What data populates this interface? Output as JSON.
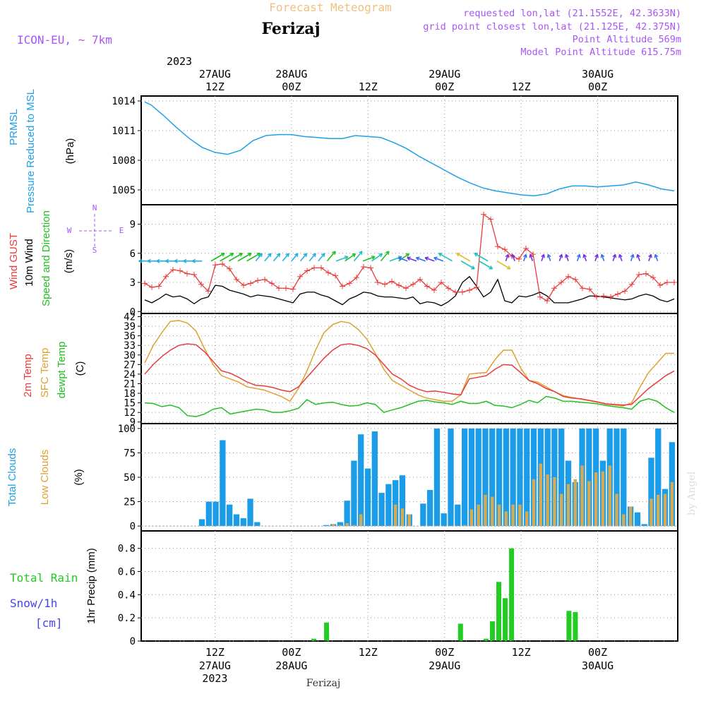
{
  "header": {
    "title_top": "Forecast Meteogram",
    "location": "Ferizaj",
    "model": "ICON-EU, ~ 7km",
    "requested": "requested lon,lat (21.1552E, 42.3633N)",
    "grid_point": "grid point closest lon,lat (21.125E, 42.375N)",
    "point_alt": "Point Altitude 569m",
    "model_alt": "Model Point Altitude 615.75m",
    "footer_location": "Ferizaj",
    "watermark": "by Angel"
  },
  "time_axis": {
    "top_year": "2023",
    "top_labels": [
      {
        "l1": "27AUG",
        "l2": "12Z"
      },
      {
        "l1": "28AUG",
        "l2": "00Z"
      },
      {
        "l1": "",
        "l2": "12Z"
      },
      {
        "l1": "29AUG",
        "l2": "00Z"
      },
      {
        "l1": "",
        "l2": "12Z"
      },
      {
        "l1": "30AUG",
        "l2": "00Z"
      }
    ],
    "bottom_labels": [
      {
        "l1": "12Z",
        "l2": "27AUG",
        "l3": "2023"
      },
      {
        "l1": "00Z",
        "l2": "28AUG",
        "l3": ""
      },
      {
        "l1": "12Z",
        "l2": "",
        "l3": ""
      },
      {
        "l1": "00Z",
        "l2": "29AUG",
        "l3": ""
      },
      {
        "l1": "12Z",
        "l2": "",
        "l3": ""
      },
      {
        "l1": "00Z",
        "l2": "30AUG",
        "l3": ""
      }
    ]
  },
  "labels": {
    "pressure": [
      "PRMSL",
      "Pressure Reduced to MSL"
    ],
    "pressure_unit": "(hPa)",
    "wind": [
      "Wind GUST",
      "10m Wind",
      "Speed and Direction"
    ],
    "wind_unit": "(m/s)",
    "compass": {
      "n": "N",
      "s": "S",
      "e": "E",
      "w": "W"
    },
    "temp": [
      "2m Temp",
      "SFC Temp",
      "dewpt Temp"
    ],
    "temp_unit": "(C)",
    "clouds": [
      "Total Clouds",
      "Low Clouds"
    ],
    "clouds_unit": "(%)",
    "precip_legend": [
      "Total  Rain",
      "Snow/1h",
      "[cm]"
    ],
    "precip_unit": "1hr Precip (mm)"
  },
  "colors": {
    "pressure": "#1fa0e6",
    "gust": "#e83c3c",
    "wind": "#000000",
    "temp2m": "#e83c3c",
    "sfc": "#e0a030",
    "dewpt": "#22c022",
    "total_clouds": "#1a9ce8",
    "low_clouds": "#d4aa55",
    "rain": "#22cc22",
    "snow": "#4444ee",
    "header_purple": "#a855f7",
    "title_orange": "#f0c080"
  },
  "chart_data": [
    {
      "type": "line",
      "name": "pressure",
      "hours": [
        0,
        1,
        3,
        5,
        7,
        9,
        11,
        13,
        15,
        17,
        19,
        21,
        23,
        25,
        27,
        29,
        31,
        33,
        35,
        37,
        39,
        41,
        43,
        45,
        47,
        49,
        51,
        53,
        55,
        57,
        59,
        61,
        63,
        65,
        67,
        69,
        71,
        73,
        75,
        77,
        79,
        81,
        83
      ],
      "values": [
        1013.9,
        1013.6,
        1012.5,
        1011.3,
        1010.2,
        1009.3,
        1008.8,
        1008.6,
        1009.0,
        1010.0,
        1010.5,
        1010.6,
        1010.6,
        1010.4,
        1010.3,
        1010.2,
        1010.2,
        1010.5,
        1010.4,
        1010.3,
        1009.8,
        1009.2,
        1008.4,
        1007.7,
        1007.0,
        1006.3,
        1005.7,
        1005.2,
        1004.9,
        1004.7,
        1004.5,
        1004.4,
        1004.6,
        1005.1,
        1005.4,
        1005.4,
        1005.3,
        1005.4,
        1005.5,
        1005.8,
        1005.5,
        1005.1,
        1004.9
      ],
      "ylim": [
        1003.5,
        1014.5
      ],
      "yticks": [
        1005,
        1008,
        1011,
        1014
      ]
    },
    {
      "type": "line",
      "name": "wind",
      "ylim": [
        -0.2,
        11
      ],
      "yticks": [
        0,
        3,
        6,
        9
      ]
    },
    {
      "type": "line",
      "name": "temperature",
      "ylim": [
        8.5,
        43
      ],
      "yticks": [
        9,
        12,
        15,
        18,
        21,
        24,
        27,
        30,
        33,
        36,
        39,
        42
      ]
    },
    {
      "type": "bar",
      "name": "clouds",
      "ylim": [
        -5,
        105
      ],
      "yticks": [
        0,
        25,
        50,
        75,
        100
      ]
    },
    {
      "type": "bar",
      "name": "precip",
      "ylim": [
        0,
        0.95
      ],
      "yticks": [
        0,
        0.2,
        0.4,
        0.6,
        0.8
      ]
    }
  ]
}
